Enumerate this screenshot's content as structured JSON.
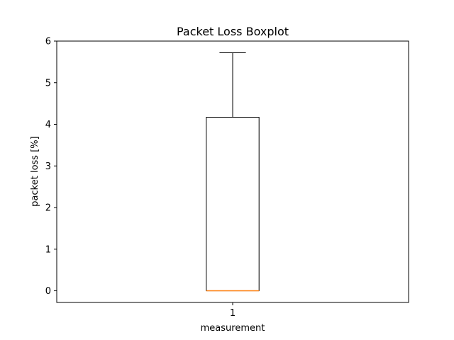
{
  "chart_data": {
    "type": "boxplot",
    "title": "Packet Loss Boxplot",
    "xlabel": "measurement",
    "ylabel": "packet loss [%]",
    "categories": [
      "1"
    ],
    "boxes": [
      {
        "category": "1",
        "min": 0,
        "q1": 0,
        "median": 0,
        "q3": 4.17,
        "max": 5.72
      }
    ],
    "ylim": [
      -0.28,
      6
    ],
    "yticks": [
      0,
      1,
      2,
      3,
      4,
      5,
      6
    ],
    "grid": false,
    "colors": {
      "box": "#000000",
      "median": "#ff7f0e"
    }
  }
}
